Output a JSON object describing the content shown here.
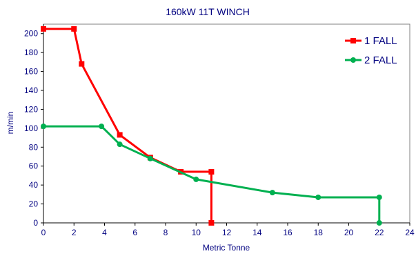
{
  "chart_data": {
    "type": "line",
    "title": "160kW 11T WINCH",
    "xlabel": "Metric Tonne",
    "ylabel": "m/min",
    "xlim": [
      0,
      24
    ],
    "ylim": [
      0,
      210
    ],
    "xticks": [
      0,
      2,
      4,
      6,
      8,
      10,
      12,
      14,
      16,
      18,
      20,
      22,
      24
    ],
    "yticks": [
      0,
      20,
      40,
      60,
      80,
      100,
      120,
      140,
      160,
      180,
      200
    ],
    "grid": false,
    "legend_position": "top-right",
    "series": [
      {
        "name": "1 FALL",
        "color": "#ff0000",
        "marker": "square",
        "points": [
          [
            0,
            205
          ],
          [
            2,
            205
          ],
          [
            2.5,
            168
          ],
          [
            5,
            93
          ],
          [
            7,
            69
          ],
          [
            9,
            54
          ],
          [
            11,
            54
          ],
          [
            11,
            0
          ]
        ]
      },
      {
        "name": "2 FALL",
        "color": "#00b050",
        "marker": "circle",
        "points": [
          [
            0,
            102
          ],
          [
            3.8,
            102
          ],
          [
            5,
            83
          ],
          [
            7,
            68
          ],
          [
            10,
            46
          ],
          [
            15,
            32
          ],
          [
            18,
            27
          ],
          [
            22,
            27
          ],
          [
            22,
            0
          ]
        ]
      }
    ]
  }
}
